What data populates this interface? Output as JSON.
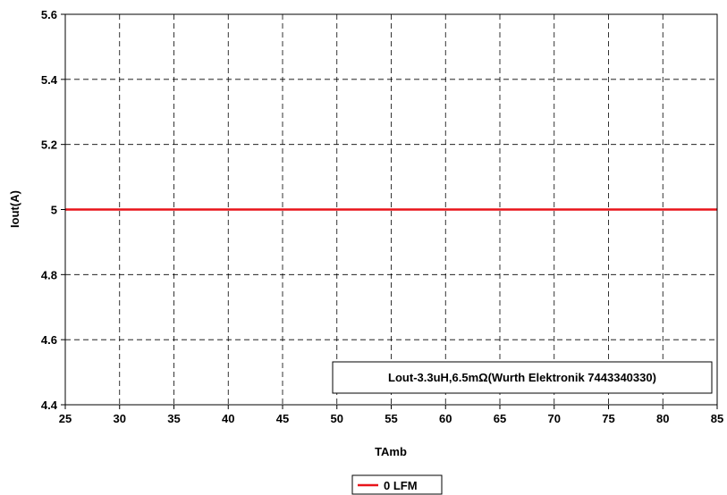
{
  "chart_data": {
    "type": "line",
    "title": "",
    "xlabel": "TAmb",
    "ylabel": "Iout(A)",
    "xlim": [
      25,
      85
    ],
    "ylim": [
      4.4,
      5.6
    ],
    "x_ticks": [
      "25",
      "30",
      "35",
      "40",
      "45",
      "50",
      "55",
      "60",
      "65",
      "70",
      "75",
      "80",
      "85"
    ],
    "y_ticks": [
      "4.4",
      "4.6",
      "4.8",
      "5",
      "5.2",
      "5.4",
      "5.6"
    ],
    "grid": true,
    "grid_style": "dashed",
    "legend_position": "bottom-center",
    "series": [
      {
        "name": "0 LFM",
        "color": "#e8141a",
        "x": [
          25,
          85
        ],
        "y": [
          5,
          5
        ]
      }
    ],
    "annotation": "Lout-3.3uH,6.5mΩ(Wurth Elektronik 7443340330)"
  }
}
